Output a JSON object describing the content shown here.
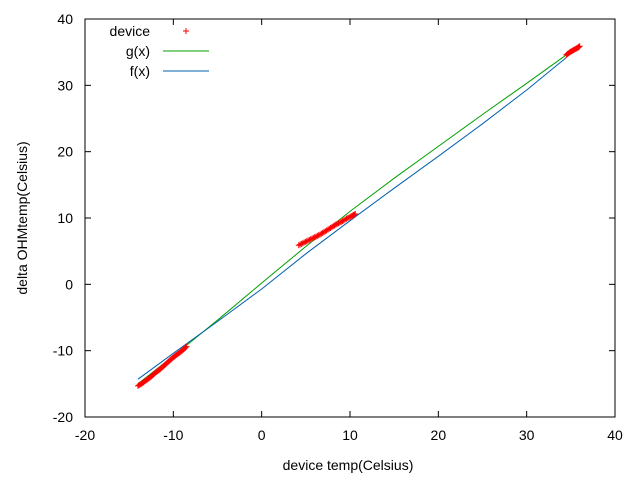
{
  "chart_data": {
    "type": "scatter",
    "xlabel": "device temp(Celsius)",
    "ylabel": "delta OHMtemp(Celsius)",
    "xlim": [
      -20,
      40
    ],
    "ylim": [
      -20,
      40
    ],
    "x_ticks": [
      -20,
      -10,
      0,
      10,
      20,
      30,
      40
    ],
    "y_ticks": [
      -20,
      -10,
      0,
      10,
      20,
      30,
      40
    ],
    "grid": false,
    "legend_position": "top-left",
    "series": [
      {
        "name": "device",
        "kind": "points",
        "marker": "+",
        "color": "#ff0000",
        "clusters": [
          {
            "x": [
              -14.0,
              -13.5,
              -13.0,
              -12.5,
              -12.0,
              -11.5,
              -11.0,
              -10.5,
              -10.0,
              -9.5,
              -9.0,
              -8.5
            ],
            "y": [
              -15.3,
              -14.9,
              -14.4,
              -13.9,
              -13.3,
              -12.8,
              -12.2,
              -11.6,
              -11.0,
              -10.5,
              -10.0,
              -9.4
            ]
          },
          {
            "x": [
              4.2,
              4.8,
              5.4,
              6.0,
              6.6,
              7.2,
              7.8,
              8.4,
              9.0,
              9.6,
              10.2,
              10.6
            ],
            "y": [
              5.9,
              6.3,
              6.7,
              7.1,
              7.5,
              8.0,
              8.5,
              9.0,
              9.4,
              9.9,
              10.3,
              10.6
            ]
          },
          {
            "x": [
              34.5,
              34.9,
              35.3,
              35.7,
              36.0
            ],
            "y": [
              34.6,
              35.0,
              35.3,
              35.6,
              35.9
            ]
          }
        ]
      },
      {
        "name": "g(x)",
        "kind": "line",
        "color": "#00a000",
        "x": [
          -14,
          -10,
          -5,
          0,
          5,
          10,
          15,
          20,
          25,
          30,
          34.5
        ],
        "y": [
          -15.0,
          -10.8,
          -5.4,
          0.2,
          5.7,
          11.0,
          16.0,
          20.8,
          25.6,
          30.3,
          34.6
        ]
      },
      {
        "name": "f(x)",
        "kind": "line",
        "color": "#0060b0",
        "x": [
          -14,
          -10,
          -5,
          0,
          5,
          10,
          15,
          20,
          25,
          30,
          34.5
        ],
        "y": [
          -14.3,
          -10.4,
          -5.6,
          -0.7,
          4.6,
          9.6,
          14.5,
          19.3,
          24.2,
          29.3,
          34.2
        ]
      }
    ]
  }
}
